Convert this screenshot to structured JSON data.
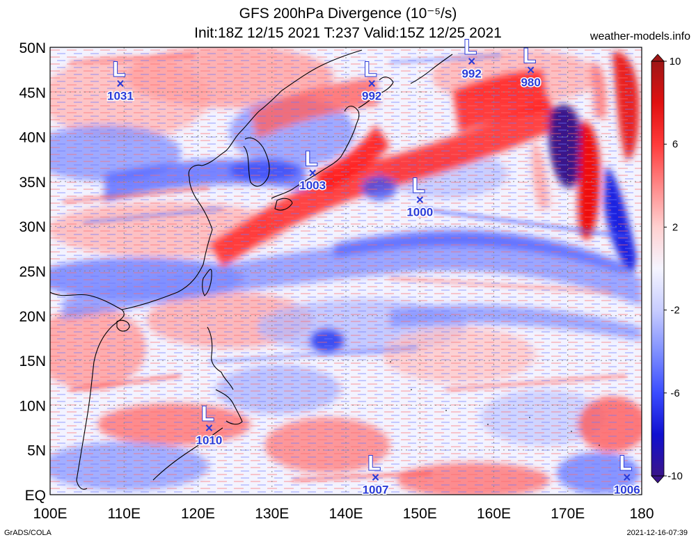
{
  "header": {
    "title_line1": "GFS 200hPa Divergence (10⁻⁵/s)",
    "title_line2": "Init:18Z 12/15 2021 T:237 Valid:15Z 12/25 2021",
    "site": "weather-models.info"
  },
  "footer": {
    "left": "GrADS/COLA",
    "right": "2021-12-16-07:39"
  },
  "map": {
    "lon_range": [
      100,
      180
    ],
    "lat_range": [
      0,
      50
    ],
    "x_ticks": [
      "100E",
      "110E",
      "120E",
      "130E",
      "140E",
      "150E",
      "160E",
      "170E",
      "180"
    ],
    "y_ticks": [
      "EQ",
      "5N",
      "10N",
      "15N",
      "20N",
      "25N",
      "30N",
      "35N",
      "40N",
      "45N",
      "50N"
    ],
    "lows": [
      {
        "label": "L",
        "lon": 109.5,
        "lat": 46.0,
        "pressure": "1031"
      },
      {
        "label": "L",
        "lon": 143.5,
        "lat": 46.0,
        "pressure": "992"
      },
      {
        "label": "L",
        "lon": 157.0,
        "lat": 48.5,
        "pressure": "992"
      },
      {
        "label": "L",
        "lon": 165.0,
        "lat": 47.5,
        "pressure": "980"
      },
      {
        "label": "L",
        "lon": 135.5,
        "lat": 36.0,
        "pressure": "1003"
      },
      {
        "label": "L",
        "lon": 150.0,
        "lat": 33.0,
        "pressure": "1000"
      },
      {
        "label": "L",
        "lon": 121.5,
        "lat": 7.5,
        "pressure": "1010"
      },
      {
        "label": "L",
        "lon": 144.0,
        "lat": 2.0,
        "pressure": "1007"
      },
      {
        "label": "L",
        "lon": 178.0,
        "lat": 2.0,
        "pressure": "1006"
      }
    ]
  },
  "colorbar": {
    "labels": [
      "10",
      "6",
      "2",
      "-2",
      "-6",
      "-10"
    ],
    "colors": [
      "#9e1717",
      "#e01010",
      "#ff3a3a",
      "#ff8888",
      "#ffd0d0",
      "#f5f5ff",
      "#c8cdff",
      "#8090ff",
      "#3a4cff",
      "#1010d0",
      "#3a148a"
    ]
  },
  "colors": {
    "strong_red": "#ff1e1e",
    "light_red": "#ff9a9a",
    "neutral": "#f4f4ff",
    "light_blue": "#a8b2ff",
    "strong_blue": "#2d3cf0",
    "deep_purple": "#3a148a",
    "marker_blue": "#2a3bd8"
  }
}
